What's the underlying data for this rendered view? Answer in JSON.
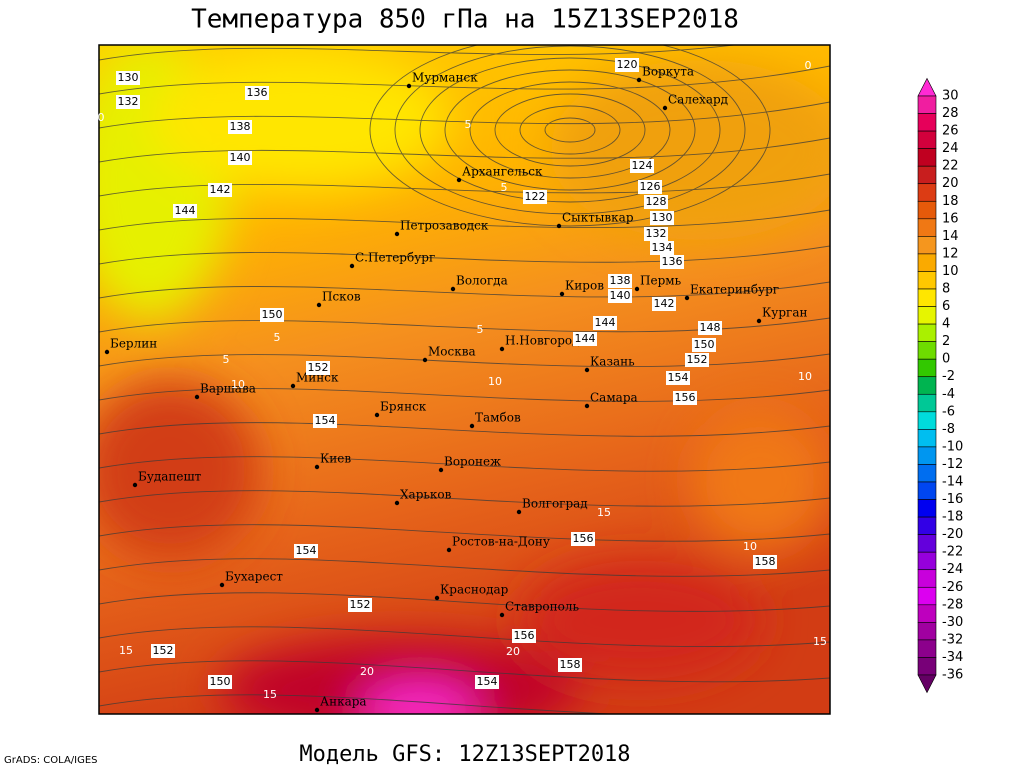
{
  "header": {
    "title": "Температура 850 гПа на 15Z13SEP2018"
  },
  "footer": {
    "model": "Модель GFS: 12Z13SEPT2018",
    "credit": "GrADS: COLA/IGES"
  },
  "map": {
    "cities": [
      "Мурманск",
      "Воркута",
      "Салехард",
      "Архангельск",
      "Сыктывкар",
      "Петрозаводск",
      "С.Петербург",
      "Вологда",
      "Киров",
      "Пермь",
      "Екатеринбург",
      "Курган",
      "Псков",
      "Берлин",
      "Москва",
      "Н.Новгород",
      "Казань",
      "Варшава",
      "Минск",
      "Самара",
      "Брянск",
      "Тамбов",
      "Киев",
      "Воронеж",
      "Будапешт",
      "Харьков",
      "Волгоград",
      "Ростов-на-Дону",
      "Бухарест",
      "Краснодар",
      "Ставрополь",
      "Анкара"
    ],
    "contour_labels": [
      130,
      132,
      136,
      138,
      140,
      142,
      144,
      150,
      152,
      154,
      154,
      152,
      152,
      150,
      154,
      156,
      158,
      156,
      158,
      156,
      154,
      152,
      150,
      148,
      142,
      140,
      138,
      144,
      144,
      136,
      134,
      132,
      130,
      128,
      126,
      124,
      122,
      120
    ],
    "isotherm_labels": [
      5,
      5,
      5,
      5,
      10,
      10,
      10,
      10,
      15,
      15,
      15,
      15,
      20,
      20,
      0,
      0,
      5
    ]
  },
  "colorbar": {
    "levels": [
      30,
      28,
      26,
      24,
      22,
      20,
      18,
      16,
      14,
      12,
      10,
      8,
      6,
      4,
      2,
      0,
      -2,
      -4,
      -6,
      -8,
      -10,
      -12,
      -14,
      -16,
      -18,
      -20,
      -22,
      -24,
      -26,
      -28,
      -30,
      -32,
      -34,
      -36
    ],
    "colors": [
      "#ff2ad4",
      "#f01ea0",
      "#e6005a",
      "#d2003c",
      "#c00020",
      "#c81e1e",
      "#dc3c14",
      "#e65a0a",
      "#f07814",
      "#f5961e",
      "#faaa00",
      "#ffc800",
      "#ffe600",
      "#e6f500",
      "#aaf000",
      "#6edc00",
      "#32c800",
      "#00b450",
      "#00c896",
      "#00dcdc",
      "#00bef0",
      "#0096f0",
      "#006ef0",
      "#0046f0",
      "#0000f0",
      "#3200e6",
      "#6400dc",
      "#9600dc",
      "#c800dc",
      "#dc00f0",
      "#be00be",
      "#a000a0",
      "#8c008c",
      "#780078",
      "#640064"
    ]
  }
}
